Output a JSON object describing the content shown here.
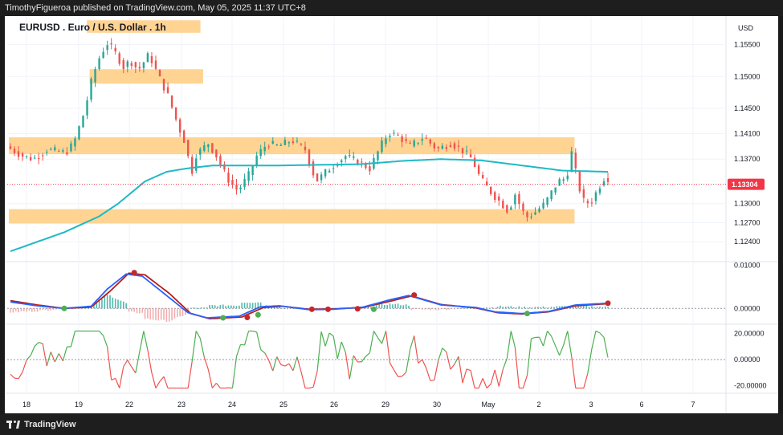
{
  "header": {
    "attribution": "TimothyFigueroa published on TradingView.com, May 05, 2025 11:37 UTC+8"
  },
  "footer": {
    "brand": "TradingView",
    "logo_icon": "tradingview-logo-icon"
  },
  "colors": {
    "up": "#26a69a",
    "down": "#ef5350",
    "ma": "#1fb9c4",
    "zone": "#ffcc80",
    "macd_fast": "#2962ff",
    "macd_slow": "#b71c1c",
    "macd_green": "#4caf50",
    "price_tag": "#f23645"
  },
  "chart_data": [
    {
      "type": "candlestick",
      "title": "EURUSD . Euro / U.S. Dollar . 1h",
      "currency": "USD",
      "ylim": [
        1.121,
        1.1595
      ],
      "y_ticks": [
        "1.15500",
        "1.15000",
        "1.14500",
        "1.14100",
        "1.13700",
        "1.13000",
        "1.12700",
        "1.12400"
      ],
      "y_tick_values": [
        1.155,
        1.15,
        1.145,
        1.141,
        1.137,
        1.13,
        1.127,
        1.124
      ],
      "x_ticks": [
        "18",
        "19",
        "22",
        "23",
        "24",
        "25",
        "26",
        "29",
        "30",
        "May",
        "2",
        "3",
        "6",
        "7"
      ],
      "last_price": "1.13304",
      "last_price_value": 1.13304,
      "price_path": [
        [
          0,
          1.139
        ],
        [
          12,
          1.1375
        ],
        [
          20,
          1.137
        ],
        [
          30,
          1.1385
        ],
        [
          44,
          1.138
        ],
        [
          50,
          1.1395
        ],
        [
          58,
          1.1445
        ],
        [
          64,
          1.15
        ],
        [
          70,
          1.1535
        ],
        [
          75,
          1.1552
        ],
        [
          80,
          1.154
        ],
        [
          87,
          1.1515
        ],
        [
          92,
          1.1525
        ],
        [
          98,
          1.151
        ],
        [
          106,
          1.1535
        ],
        [
          112,
          1.1505
        ],
        [
          120,
          1.147
        ],
        [
          128,
          1.142
        ],
        [
          134,
          1.139
        ],
        [
          137,
          1.134
        ],
        [
          140,
          1.1375
        ],
        [
          150,
          1.1395
        ],
        [
          156,
          1.1375
        ],
        [
          164,
          1.134
        ],
        [
          172,
          1.132
        ],
        [
          180,
          1.1345
        ],
        [
          186,
          1.1375
        ],
        [
          194,
          1.1395
        ],
        [
          202,
          1.139
        ],
        [
          212,
          1.14
        ],
        [
          222,
          1.1385
        ],
        [
          230,
          1.1335
        ],
        [
          240,
          1.1355
        ],
        [
          252,
          1.1375
        ],
        [
          262,
          1.1365
        ],
        [
          270,
          1.1355
        ],
        [
          278,
          1.139
        ],
        [
          284,
          1.1412
        ],
        [
          292,
          1.1405
        ],
        [
          300,
          1.139
        ],
        [
          310,
          1.1405
        ],
        [
          320,
          1.1385
        ],
        [
          330,
          1.1395
        ],
        [
          338,
          1.1385
        ],
        [
          346,
          1.137
        ],
        [
          352,
          1.134
        ],
        [
          360,
          1.1318
        ],
        [
          368,
          1.13
        ],
        [
          373,
          1.1288
        ],
        [
          378,
          1.1315
        ],
        [
          382,
          1.1295
        ],
        [
          386,
          1.1278
        ],
        [
          392,
          1.1285
        ],
        [
          400,
          1.13
        ],
        [
          410,
          1.1335
        ],
        [
          416,
          1.134
        ],
        [
          420,
          1.138
        ],
        [
          424,
          1.134
        ],
        [
          428,
          1.1305
        ],
        [
          434,
          1.13
        ],
        [
          440,
          1.1325
        ],
        [
          444,
          1.134
        ]
      ],
      "ma_path": [
        [
          0,
          1.1225
        ],
        [
          40,
          1.1255
        ],
        [
          66,
          1.128
        ],
        [
          80,
          1.13
        ],
        [
          100,
          1.1335
        ],
        [
          116,
          1.135
        ],
        [
          130,
          1.1355
        ],
        [
          150,
          1.136
        ],
        [
          200,
          1.136
        ],
        [
          260,
          1.1362
        ],
        [
          290,
          1.1367
        ],
        [
          320,
          1.137
        ],
        [
          350,
          1.1368
        ],
        [
          380,
          1.136
        ],
        [
          410,
          1.1352
        ],
        [
          444,
          1.135
        ]
      ],
      "zones": [
        {
          "from": 58,
          "to": 140,
          "top": 1.1582,
          "bottom": 1.1575
        },
        {
          "from": 60,
          "to": 142,
          "top": 1.1505,
          "bottom": 1.1495
        },
        {
          "from": 0,
          "to": 418,
          "top": 1.1398,
          "bottom": 1.1384
        },
        {
          "from": 0,
          "to": 418,
          "top": 1.1285,
          "bottom": 1.1275
        }
      ],
      "bar_count": 445
    },
    {
      "type": "line",
      "indicator": "MACD",
      "ylim": [
        -0.0035,
        0.0105
      ],
      "y_ticks": [
        "0.01000",
        "0.00000"
      ],
      "y_tick_values": [
        0.01,
        0.0
      ],
      "fast_path": [
        [
          0,
          0.0015
        ],
        [
          20,
          0.0006
        ],
        [
          40,
          0.0
        ],
        [
          60,
          0.0005
        ],
        [
          72,
          0.0045
        ],
        [
          86,
          0.008
        ],
        [
          98,
          0.0075
        ],
        [
          116,
          0.003
        ],
        [
          132,
          -0.001
        ],
        [
          146,
          -0.0022
        ],
        [
          170,
          -0.0018
        ],
        [
          186,
          0.0004
        ],
        [
          200,
          0.0006
        ],
        [
          222,
          -0.0003
        ],
        [
          240,
          -0.0002
        ],
        [
          262,
          0.0003
        ],
        [
          282,
          0.002
        ],
        [
          296,
          0.003
        ],
        [
          320,
          0.0008
        ],
        [
          346,
          0.0002
        ],
        [
          360,
          -0.0008
        ],
        [
          380,
          -0.0012
        ],
        [
          400,
          -0.0007
        ],
        [
          420,
          0.0008
        ],
        [
          444,
          0.0012
        ]
      ],
      "slow_path": [
        [
          0,
          0.0018
        ],
        [
          20,
          0.0008
        ],
        [
          40,
          0.0
        ],
        [
          60,
          0.0003
        ],
        [
          74,
          0.004
        ],
        [
          88,
          0.0082
        ],
        [
          100,
          0.0078
        ],
        [
          118,
          0.0035
        ],
        [
          134,
          -0.0012
        ],
        [
          148,
          -0.0024
        ],
        [
          172,
          -0.002
        ],
        [
          188,
          0.0002
        ],
        [
          202,
          0.0005
        ],
        [
          222,
          -0.0002
        ],
        [
          240,
          -0.0001
        ],
        [
          262,
          0.0002
        ],
        [
          284,
          0.0018
        ],
        [
          298,
          0.0029
        ],
        [
          320,
          0.0009
        ],
        [
          346,
          0.0001
        ],
        [
          362,
          -0.001
        ],
        [
          380,
          -0.0013
        ],
        [
          400,
          -0.0008
        ],
        [
          420,
          0.0006
        ],
        [
          444,
          0.0011
        ]
      ],
      "cross_points": [
        {
          "x": 40,
          "v": 0.0,
          "c": "green"
        },
        {
          "x": 92,
          "v": 0.0083,
          "c": "red"
        },
        {
          "x": 158,
          "v": -0.0022,
          "c": "green"
        },
        {
          "x": 176,
          "v": -0.0021,
          "c": "red"
        },
        {
          "x": 184,
          "v": -0.0015,
          "c": "green"
        },
        {
          "x": 224,
          "v": -0.0002,
          "c": "red"
        },
        {
          "x": 236,
          "v": -0.0002,
          "c": "red"
        },
        {
          "x": 258,
          "v": -0.0001,
          "c": "red"
        },
        {
          "x": 270,
          "v": -0.0002,
          "c": "green"
        },
        {
          "x": 300,
          "v": 0.0031,
          "c": "red"
        },
        {
          "x": 384,
          "v": -0.0012,
          "c": "green"
        },
        {
          "x": 444,
          "v": 0.0012,
          "c": "red"
        }
      ]
    },
    {
      "type": "line",
      "indicator": "Oscillator",
      "ylim": [
        -26,
        26
      ],
      "y_ticks": [
        "20.00000",
        "0.00000",
        "-20.00000"
      ],
      "y_tick_values": [
        20,
        0,
        -20
      ]
    }
  ]
}
